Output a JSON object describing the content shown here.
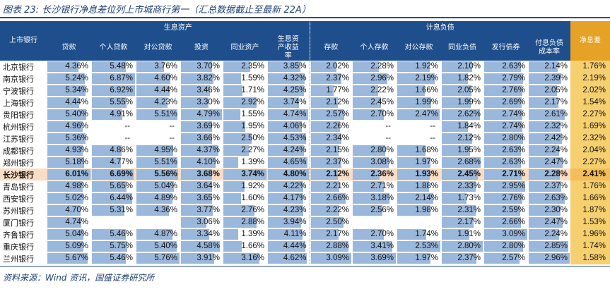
{
  "title": "图表 23:  长沙银行净息差位列上市城商行第一（汇总数据截止至最新 22A）",
  "source": "资料来源：Wind 资讯，国盛证券研究所",
  "headers": {
    "bank": "上市银行",
    "group_assets": "生息资产",
    "group_liabilities": "计息负债",
    "nim": "净息差",
    "loans": "贷款",
    "personal_loans": "个人贷款",
    "corporate_loans": "对公贷款",
    "investment": "投资",
    "interbank_assets": "同业资产",
    "asset_yield": "生息资产收益率",
    "deposits": "存款",
    "personal_deposits": "个人存款",
    "corporate_deposits": "对公存款",
    "interbank_liabilities": "同业负债",
    "bonds_issued": "发行债券",
    "liability_cost": "付息负债成本率"
  },
  "rows": [
    {
      "bank": "北京银行",
      "values": [
        "4.36%",
        "5.48%",
        "3.76%",
        "3.70%",
        "2.35%",
        "3.85%",
        "2.02%",
        "2.28%",
        "1.92%",
        "2.10%",
        "2.63%",
        "2.14%",
        "1.76%"
      ]
    },
    {
      "bank": "南京银行",
      "values": [
        "5.24%",
        "6.87%",
        "4.60%",
        "3.82%",
        "1.59%",
        "4.32%",
        "2.37%",
        "2.96%",
        "2.19%",
        "1.82%",
        "2.79%",
        "2.39%",
        "2.19%"
      ]
    },
    {
      "bank": "宁波银行",
      "values": [
        "5.34%",
        "6.92%",
        "4.44%",
        "3.46%",
        "1.71%",
        "4.25%",
        "1.77%",
        "2.22%",
        "1.66%",
        "2.05%",
        "2.76%",
        "2.05%",
        "2.02%"
      ]
    },
    {
      "bank": "上海银行",
      "values": [
        "4.44%",
        "5.55%",
        "4.23%",
        "3.30%",
        "2.92%",
        "3.74%",
        "2.12%",
        "2.45%",
        "1.99%",
        "1.99%",
        "2.69%",
        "2.17%",
        "1.54%"
      ]
    },
    {
      "bank": "贵阳银行",
      "values": [
        "5.40%",
        "4.91%",
        "5.51%",
        "4.79%",
        "1.55%",
        "4.74%",
        "2.57%",
        "2.70%",
        "2.47%",
        "2.62%",
        "2.74%",
        "2.61%",
        "2.27%"
      ]
    },
    {
      "bank": "杭州银行",
      "values": [
        "4.96%",
        "--",
        "--",
        "3.69%",
        "1.95%",
        "4.06%",
        "2.26%",
        "--",
        "--",
        "1.84%",
        "2.74%",
        "2.32%",
        "1.69%"
      ]
    },
    {
      "bank": "江苏银行",
      "values": [
        "5.36%",
        "--",
        "--",
        "3.66%",
        "2.50%",
        "4.53%",
        "2.34%",
        "--",
        "--",
        "2.12%",
        "2.80%",
        "2.42%",
        "2.32%"
      ]
    },
    {
      "bank": "成都银行",
      "values": [
        "4.93%",
        "4.86%",
        "4.95%",
        "4.37%",
        "2.27%",
        "4.24%",
        "2.15%",
        "2.80%",
        "1.68%",
        "1.95%",
        "2.63%",
        "2.24%",
        "2.04%"
      ]
    },
    {
      "bank": "郑州银行",
      "values": [
        "5.18%",
        "4.77%",
        "5.51%",
        "4.10%",
        "1.39%",
        "4.65%",
        "2.37%",
        "3.08%",
        "1.97%",
        "2.68%",
        "2.63%",
        "2.47%",
        "2.27%"
      ]
    },
    {
      "bank": "长沙银行",
      "values": [
        "6.01%",
        "6.69%",
        "5.56%",
        "3.68%",
        "3.74%",
        "4.80%",
        "2.12%",
        "2.36%",
        "1.93%",
        "2.45%",
        "2.71%",
        "2.28%",
        "2.41%"
      ],
      "highlight": true
    },
    {
      "bank": "青岛银行",
      "values": [
        "4.98%",
        "5.65%",
        "5.04%",
        "3.64%",
        "1.92%",
        "4.22%",
        "2.21%",
        "2.71%",
        "1.88%",
        "2.33%",
        "2.95%",
        "2.37%",
        "1.76%"
      ]
    },
    {
      "bank": "西安银行",
      "values": [
        "5.02%",
        "6.44%",
        "4.89%",
        "3.65%",
        "1.60%",
        "4.17%",
        "2.66%",
        "3.18%",
        "2.14%",
        "1.73%",
        "2.76%",
        "2.63%",
        "1.66%"
      ]
    },
    {
      "bank": "苏州银行",
      "values": [
        "4.70%",
        "5.31%",
        "4.36%",
        "3.77%",
        "2.76%",
        "4.23%",
        "2.22%",
        "2.56%",
        "1.98%",
        "2.31%",
        "2.59%",
        "2.30%",
        "1.87%"
      ]
    },
    {
      "bank": "厦门银行",
      "values": [
        "4.74%",
        "",
        "",
        "3.06%",
        "2.88%",
        "3.94%",
        "2.50%",
        "",
        "",
        "2.17%",
        "2.66%",
        "2.47%",
        "1.53%"
      ]
    },
    {
      "bank": "齐鲁银行",
      "values": [
        "5.04%",
        "5.46%",
        "4.87%",
        "3.34%",
        "1.39%",
        "4.11%",
        "2.17%",
        "2.70%",
        "1.74%",
        "1.91%",
        "3.09%",
        "2.24%",
        "1.96%"
      ]
    },
    {
      "bank": "重庆银行",
      "values": [
        "5.09%",
        "5.75%",
        "5.40%",
        "4.58%",
        "1.66%",
        "4.44%",
        "2.88%",
        "3.41%",
        "2.53%",
        "2.80%",
        "2.80%",
        "2.85%",
        "1.74%"
      ]
    },
    {
      "bank": "兰州银行",
      "values": [
        "5.67%",
        "5.46%",
        "5.76%",
        "3.91%",
        "3.16%",
        "4.62%",
        "3.09%",
        "3.69%",
        "1.97%",
        "2.37%",
        "2.57%",
        "2.96%",
        "1.58%"
      ]
    }
  ],
  "colors": {
    "header_bg": "#1f4e8c",
    "bar": "#9ab7dc",
    "nim_bg": "#f6cf6f",
    "highlight_row": "#fbdcc4"
  }
}
